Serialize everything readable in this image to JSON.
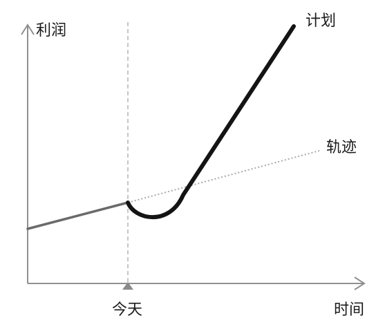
{
  "diagram": {
    "y_axis_label": "利润",
    "x_axis_label": "时间",
    "today_label": "今天",
    "plan_label": "计划",
    "trajectory_label": "轨迹"
  },
  "colors": {
    "axis": "#8f8f8f",
    "past_line": "#6a6a6a",
    "plan_line": "#141414",
    "trajectory_line": "#a8a8a8",
    "today_guide": "#a0a0a0",
    "today_marker": "#8a8a8a"
  }
}
